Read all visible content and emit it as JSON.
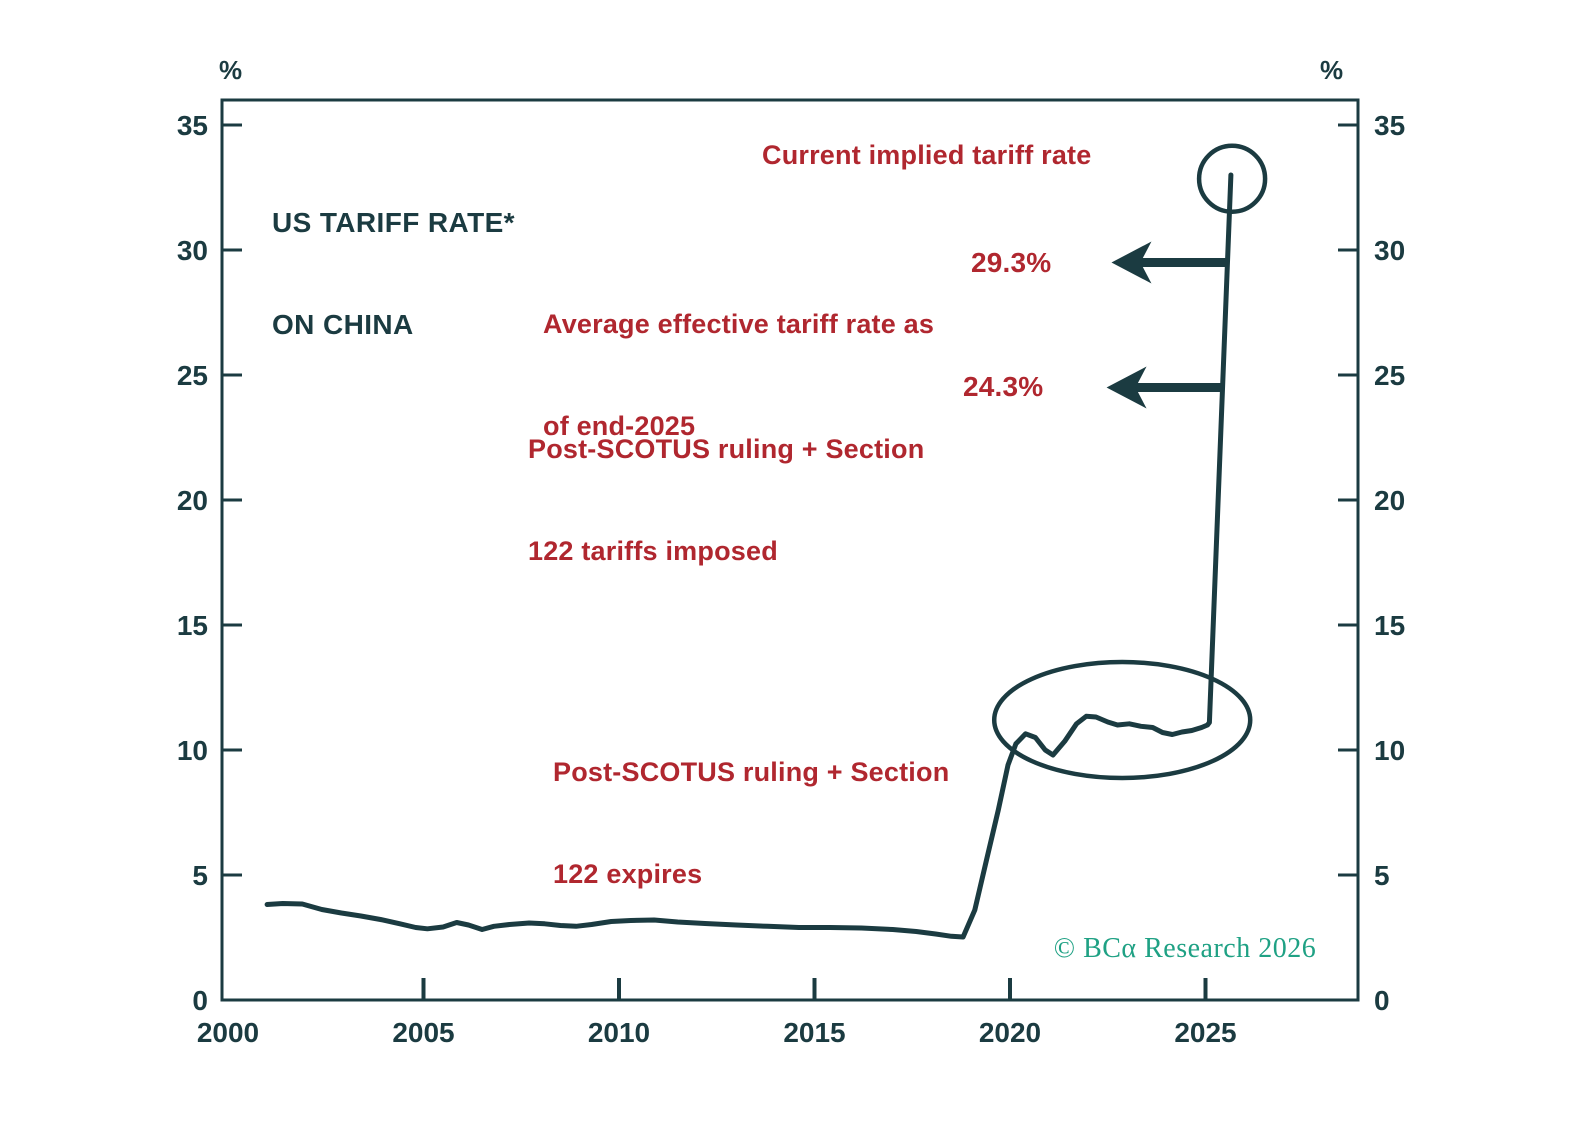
{
  "title": {
    "line1": "US TARIFF RATE*",
    "line2": "ON CHINA"
  },
  "axis": {
    "unit_left": "%",
    "unit_right": "%"
  },
  "copyright": "© BCα Research 2026",
  "colors": {
    "dark_teal": "#1b3b41",
    "annotation_red": "#b0272f",
    "copyright_green": "#1fa184",
    "background": "#ffffff"
  },
  "chart_data": {
    "type": "line",
    "title": "US TARIFF RATE* ON CHINA",
    "xlabel": "",
    "ylabel": "%",
    "xlim": [
      1999.85,
      2028.9
    ],
    "ylim": [
      0,
      36
    ],
    "grid": false,
    "x_ticks": [
      "2000",
      "2005",
      "2010",
      "2015",
      "2020",
      "2025"
    ],
    "y_ticks": [
      "0",
      "5",
      "10",
      "15",
      "20",
      "25",
      "30",
      "35"
    ],
    "series": [
      {
        "name": "US tariff rate on China",
        "points": [
          [
            2001.0,
            3.82
          ],
          [
            2001.4,
            3.86
          ],
          [
            2001.9,
            3.84
          ],
          [
            2002.4,
            3.62
          ],
          [
            2002.9,
            3.48
          ],
          [
            2003.4,
            3.36
          ],
          [
            2003.9,
            3.22
          ],
          [
            2004.4,
            3.05
          ],
          [
            2004.8,
            2.9
          ],
          [
            2005.1,
            2.85
          ],
          [
            2005.5,
            2.92
          ],
          [
            2005.85,
            3.1
          ],
          [
            2006.15,
            3.0
          ],
          [
            2006.5,
            2.82
          ],
          [
            2006.8,
            2.95
          ],
          [
            2007.2,
            3.02
          ],
          [
            2007.7,
            3.08
          ],
          [
            2008.1,
            3.05
          ],
          [
            2008.5,
            2.98
          ],
          [
            2008.9,
            2.95
          ],
          [
            2009.3,
            3.02
          ],
          [
            2009.8,
            3.14
          ],
          [
            2010.3,
            3.18
          ],
          [
            2010.9,
            3.2
          ],
          [
            2011.5,
            3.12
          ],
          [
            2012.2,
            3.06
          ],
          [
            2013.0,
            3.0
          ],
          [
            2013.8,
            2.95
          ],
          [
            2014.6,
            2.9
          ],
          [
            2015.4,
            2.9
          ],
          [
            2016.2,
            2.88
          ],
          [
            2017.0,
            2.82
          ],
          [
            2017.6,
            2.74
          ],
          [
            2018.1,
            2.64
          ],
          [
            2018.5,
            2.55
          ],
          [
            2018.8,
            2.52
          ],
          [
            2019.1,
            3.6
          ],
          [
            2019.4,
            5.6
          ],
          [
            2019.7,
            7.6
          ],
          [
            2019.95,
            9.4
          ],
          [
            2020.15,
            10.25
          ],
          [
            2020.4,
            10.65
          ],
          [
            2020.65,
            10.5
          ],
          [
            2020.9,
            10.0
          ],
          [
            2021.1,
            9.8
          ],
          [
            2021.4,
            10.35
          ],
          [
            2021.7,
            11.05
          ],
          [
            2021.95,
            11.35
          ],
          [
            2022.2,
            11.32
          ],
          [
            2022.5,
            11.12
          ],
          [
            2022.75,
            11.0
          ],
          [
            2023.05,
            11.05
          ],
          [
            2023.35,
            10.95
          ],
          [
            2023.65,
            10.9
          ],
          [
            2023.9,
            10.7
          ],
          [
            2024.15,
            10.62
          ],
          [
            2024.4,
            10.72
          ],
          [
            2024.65,
            10.78
          ],
          [
            2024.9,
            10.9
          ],
          [
            2025.05,
            11.0
          ],
          [
            2025.1,
            11.1
          ],
          [
            2025.65,
            33.0
          ]
        ]
      }
    ],
    "annotations": {
      "current_implied": {
        "label": "Current implied tariff rate",
        "circle": {
          "year": 2025.68,
          "value": 32.85
        }
      },
      "avg_effective": {
        "label_line1": "Average effective tariff rate as",
        "label_line2": "of end-2025",
        "value_label": "29.3%",
        "arrow_value": 29.5
      },
      "scotus_imposed": {
        "label_line1": "Post-SCOTUS ruling + Section",
        "label_line2": "122 tariffs imposed",
        "value_label": "24.3%",
        "arrow_value": 24.5
      },
      "scotus_expires": {
        "label_line1": "Post-SCOTUS ruling + Section",
        "label_line2": "122 expires",
        "ellipse": {
          "year": 2022.87,
          "value": 11.2
        }
      }
    }
  }
}
